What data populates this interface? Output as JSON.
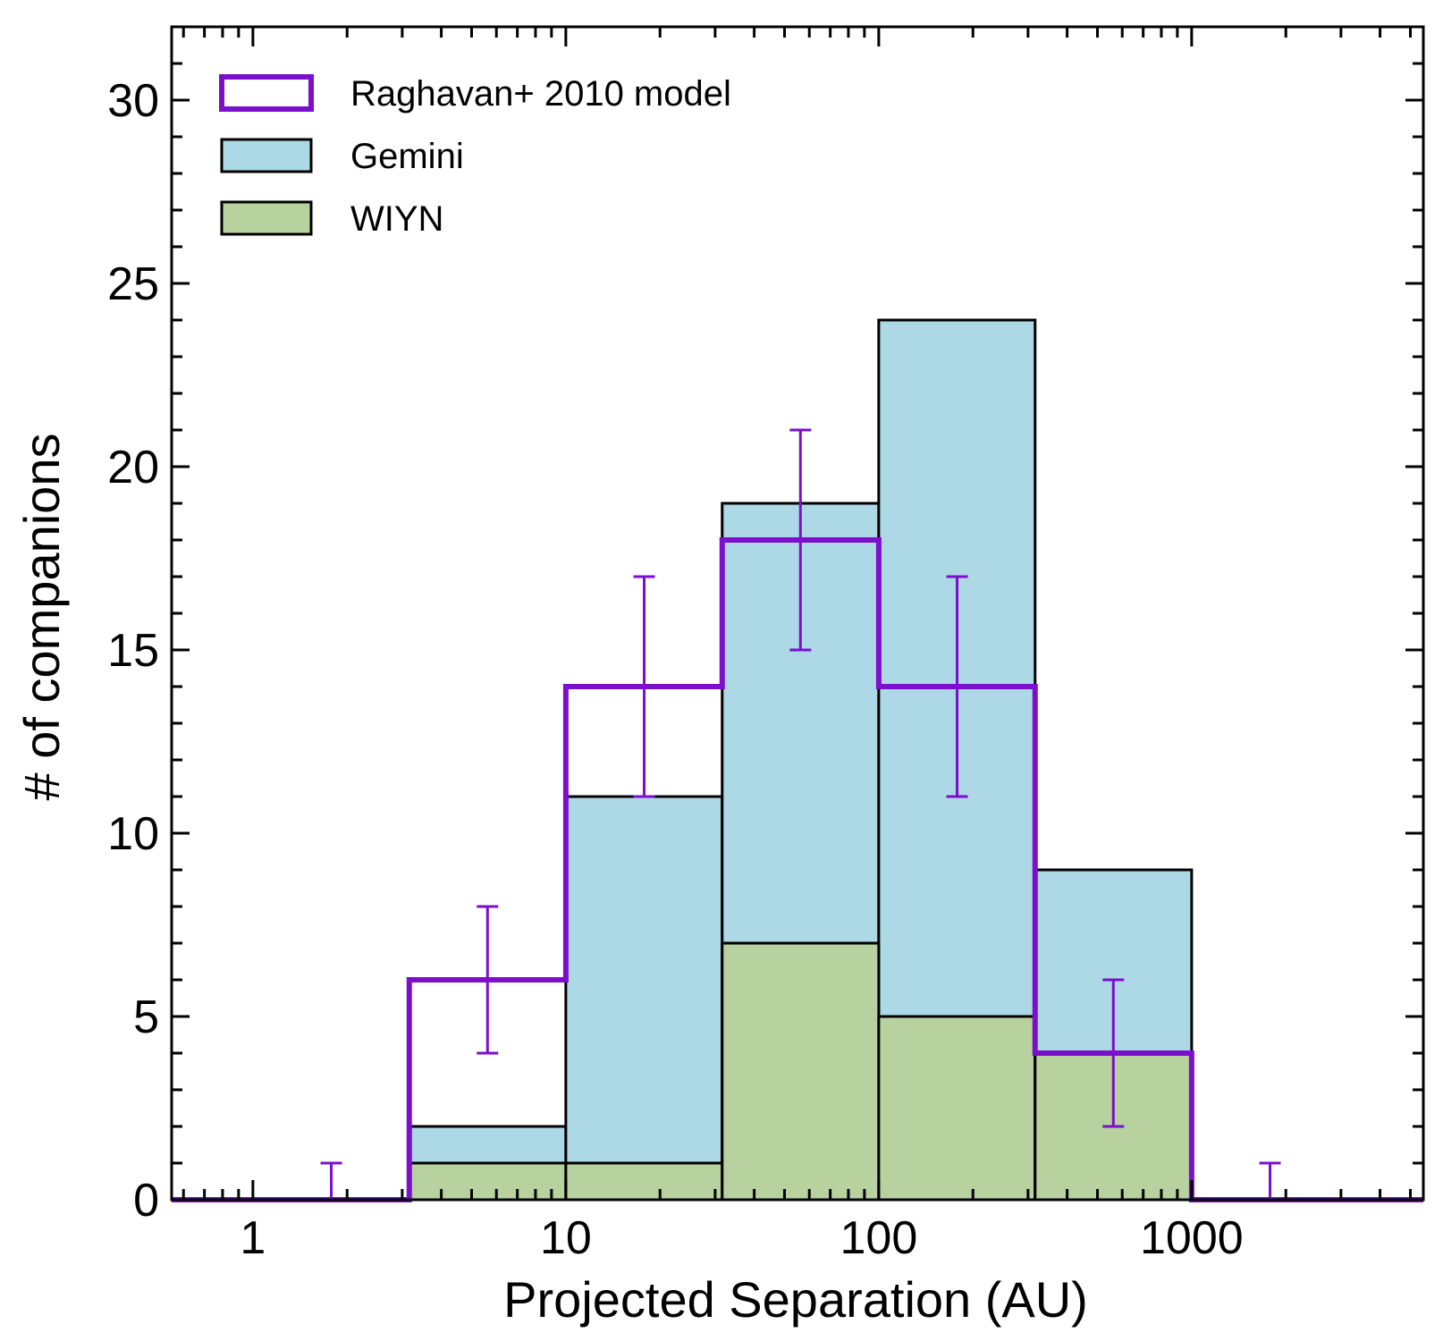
{
  "chart_data": {
    "type": "bar",
    "subtype": "histogram",
    "xscale": "log",
    "xlabel": "Projected Separation (AU)",
    "ylabel": "# of companions",
    "xlim": [
      0.55,
      5500
    ],
    "ylim": [
      0,
      32
    ],
    "grid": false,
    "legend_position": "top-left",
    "x_ticks": [
      {
        "value": 1,
        "label": "1"
      },
      {
        "value": 10,
        "label": "10"
      },
      {
        "value": 100,
        "label": "100"
      },
      {
        "value": 1000,
        "label": "1000"
      }
    ],
    "y_ticks": [
      {
        "value": 0,
        "label": "0"
      },
      {
        "value": 5,
        "label": "5"
      },
      {
        "value": 10,
        "label": "10"
      },
      {
        "value": 15,
        "label": "15"
      },
      {
        "value": 20,
        "label": "20"
      },
      {
        "value": 25,
        "label": "25"
      },
      {
        "value": 30,
        "label": "30"
      }
    ],
    "bin_edges": [
      3.16,
      10,
      31.6,
      100,
      316,
      1000
    ],
    "series": [
      {
        "name": "Gemini",
        "style": "filled-bars",
        "color": "#add8e6",
        "values": [
          2,
          11,
          19,
          24,
          9
        ]
      },
      {
        "name": "WIYN",
        "style": "filled-bars",
        "color": "#b7d19f",
        "values": [
          1,
          1,
          7,
          5,
          4
        ]
      },
      {
        "name": "Raghavan+ 2010 model",
        "style": "step-outline",
        "color": "#7b0fcc",
        "bin_edges": [
          0.55,
          3.16,
          10,
          31.6,
          100,
          316,
          1000,
          5500
        ],
        "values": [
          0,
          6,
          14,
          18,
          14,
          4,
          0
        ],
        "error_bars": [
          {
            "x": 1.78,
            "y": 0,
            "low": 0,
            "high": 1
          },
          {
            "x": 5.62,
            "y": 6,
            "low": 4,
            "high": 8
          },
          {
            "x": 17.8,
            "y": 14,
            "low": 11,
            "high": 17
          },
          {
            "x": 56.2,
            "y": 18,
            "low": 15,
            "high": 21
          },
          {
            "x": 178,
            "y": 14,
            "low": 11,
            "high": 17
          },
          {
            "x": 562,
            "y": 4,
            "low": 2,
            "high": 6
          },
          {
            "x": 1780,
            "y": 0,
            "low": 0,
            "high": 1
          }
        ]
      }
    ]
  }
}
